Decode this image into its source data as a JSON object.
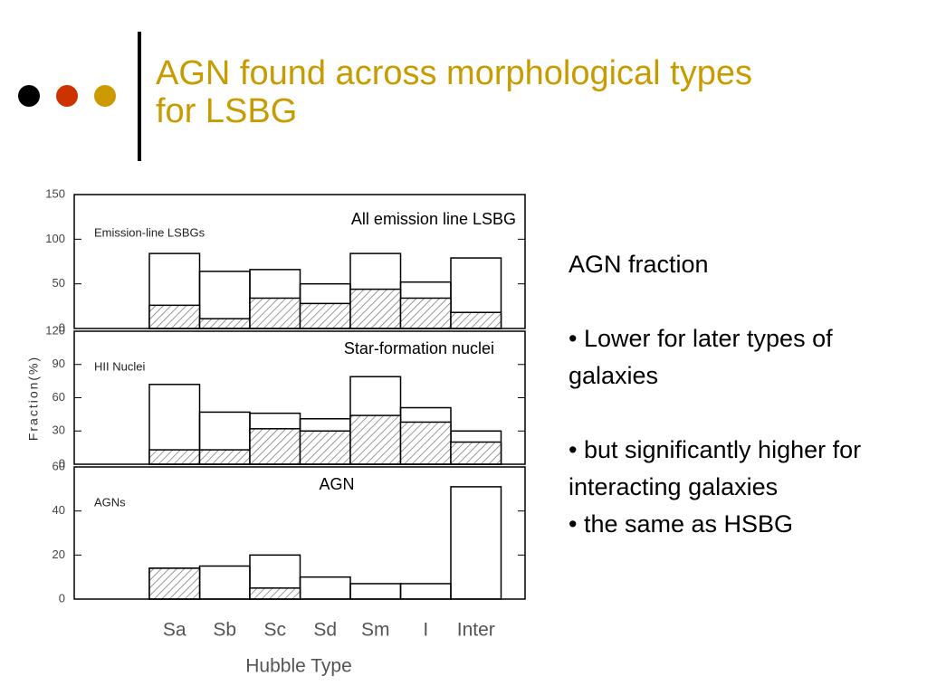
{
  "slide": {
    "title_lines": [
      "AGN found across morphological types",
      "for LSBG"
    ],
    "heading": "AGN fraction",
    "bullets": [
      "• Lower for later types of galaxies",
      "• but significantly higher for interacting galaxies",
      "• the same as HSBG"
    ]
  },
  "chart_data": [
    {
      "type": "bar",
      "panel_label": "Emission-line LSBGs",
      "annotation": "All emission line LSBG",
      "ylim": [
        0,
        150
      ],
      "yticks": [
        0,
        50,
        100,
        150
      ],
      "series": [
        {
          "color": "#000000",
          "hatched": false,
          "values": [
            84,
            64,
            66,
            50,
            84,
            52,
            79
          ]
        },
        {
          "color": "#000000",
          "hatched": true,
          "values": [
            26,
            11,
            34,
            28,
            44,
            34,
            18
          ]
        }
      ]
    },
    {
      "type": "bar",
      "panel_label": "HII Nuclei",
      "annotation": "Star-formation nuclei",
      "ylabel": "Fraction(%)",
      "ylim": [
        0,
        120
      ],
      "yticks": [
        0,
        30,
        60,
        90,
        120
      ],
      "series": [
        {
          "color": "#000000",
          "hatched": false,
          "values": [
            72,
            47,
            46,
            41,
            79,
            51,
            30
          ]
        },
        {
          "color": "#000000",
          "hatched": true,
          "values": [
            13,
            13,
            32,
            30,
            44,
            38,
            20
          ]
        }
      ]
    },
    {
      "type": "bar",
      "panel_label": "AGNs",
      "annotation": "AGN",
      "xlabel": "Hubble Type",
      "categories": [
        "Sa",
        "Sb",
        "Sc",
        "Sd",
        "Sm",
        "I",
        "Inter"
      ],
      "ylim": [
        0,
        60
      ],
      "yticks": [
        0,
        20,
        40,
        60
      ],
      "series": [
        {
          "color": "#000000",
          "hatched": false,
          "values": [
            14,
            15,
            20,
            10,
            7,
            7,
            51
          ]
        },
        {
          "color": "#000000",
          "hatched": true,
          "values": [
            14,
            0,
            5,
            0,
            0,
            0,
            0
          ]
        }
      ]
    }
  ]
}
